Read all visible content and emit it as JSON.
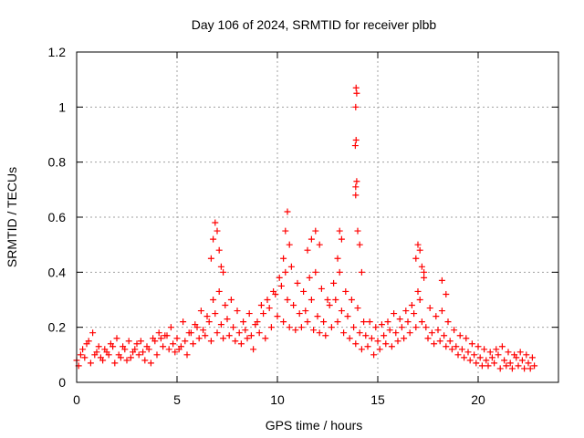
{
  "colors": {
    "series": "#ff0000",
    "grid": "#a0a0a0",
    "axis": "#000000",
    "background": "#ffffff"
  },
  "chart_data": {
    "type": "scatter",
    "title": "Day 106 of 2024, SRMTID for receiver plbb",
    "xlabel": "GPS time / hours",
    "ylabel": "SRMTID / TECUs",
    "xlim": [
      0,
      24
    ],
    "ylim": [
      0,
      1.2
    ],
    "xticks": [
      0,
      5,
      10,
      15,
      20
    ],
    "xtick_labels": [
      "0",
      "5",
      "10",
      "15",
      "20"
    ],
    "yticks": [
      0,
      0.2,
      0.4,
      0.6,
      0.8,
      1.0,
      1.2
    ],
    "ytick_labels": [
      "0",
      "0.2",
      "0.4",
      "0.6",
      "0.8",
      "1",
      "1.2"
    ],
    "grid": true,
    "marker": "+",
    "series": [
      {
        "name": "SRMTID",
        "x": [
          0.0,
          0.3,
          0.6,
          0.9,
          1.2,
          1.5,
          1.8,
          2.1,
          2.4,
          2.7,
          3.0,
          3.3,
          3.6,
          3.9,
          4.2,
          4.5,
          4.8,
          5.1,
          5.4,
          5.7,
          6.0,
          6.3,
          6.6,
          6.9,
          7.2,
          7.5,
          7.8,
          8.1,
          8.4,
          8.7,
          9.0,
          9.3,
          9.6,
          9.9,
          10.2,
          10.5,
          10.8,
          11.1,
          11.4,
          11.7,
          12.0,
          12.3,
          12.6,
          12.9,
          13.2,
          13.5,
          13.8,
          14.1,
          14.4,
          14.7,
          15.0,
          15.3,
          15.6,
          15.9,
          16.2,
          16.5,
          16.8,
          17.1,
          17.4,
          17.7,
          18.0,
          18.3,
          18.6,
          18.9,
          19.2,
          19.5,
          19.8,
          20.1,
          20.4,
          20.7,
          21.0,
          21.3,
          21.6,
          21.9,
          22.2,
          22.5,
          22.8,
          0.1,
          0.4,
          0.7,
          1.0,
          1.3,
          1.6,
          1.9,
          2.2,
          2.5,
          2.8,
          3.1,
          3.4,
          3.7,
          4.0,
          4.3,
          4.6,
          4.9,
          5.2,
          5.5,
          5.8,
          6.1,
          6.4,
          6.7,
          7.0,
          7.3,
          7.6,
          7.9,
          8.2,
          8.5,
          8.8,
          9.1,
          9.4,
          9.7,
          10.0,
          10.3,
          10.6,
          10.9,
          11.2,
          11.5,
          11.8,
          12.1,
          12.4,
          12.7,
          13.0,
          13.3,
          13.6,
          13.9,
          14.2,
          14.5,
          14.8,
          15.1,
          15.4,
          15.7,
          16.0,
          16.3,
          16.6,
          16.9,
          17.2,
          17.5,
          17.8,
          18.1,
          18.4,
          18.7,
          19.0,
          19.3,
          19.6,
          19.9,
          20.2,
          20.5,
          20.8,
          21.1,
          21.4,
          21.7,
          22.0,
          22.3,
          22.6,
          0.2,
          0.5,
          0.8,
          1.1,
          1.4,
          1.7,
          2.0,
          2.3,
          2.6,
          2.9,
          3.2,
          3.5,
          3.8,
          4.1,
          4.4,
          4.7,
          5.0,
          5.3,
          5.6,
          5.9,
          6.2,
          6.5,
          6.8,
          7.1,
          7.4,
          7.7,
          8.0,
          8.3,
          8.6,
          8.9,
          9.2,
          9.5,
          9.8,
          10.1,
          10.4,
          10.7,
          11.0,
          11.3,
          11.6,
          11.9,
          12.2,
          12.5,
          12.8,
          13.1,
          13.4,
          13.7,
          14.0,
          14.3,
          14.6,
          14.9,
          15.2,
          15.5,
          15.8,
          16.1,
          16.4,
          16.7,
          17.0,
          17.3,
          17.6,
          17.9,
          18.2,
          18.5,
          18.8,
          19.1,
          19.4,
          19.7,
          20.0,
          20.3,
          20.6,
          20.9,
          21.2,
          21.5,
          21.8,
          22.1,
          22.4,
          22.7,
          6.7,
          6.8,
          6.9,
          7.0,
          7.1,
          7.2,
          7.3,
          10.3,
          10.4,
          10.5,
          10.6,
          11.5,
          11.7,
          11.9,
          12.1,
          13.0,
          13.1,
          13.2,
          13.9,
          13.92,
          13.95,
          13.9,
          13.92,
          13.88,
          13.95,
          13.9,
          14.0,
          14.1,
          14.2,
          16.9,
          17.0,
          17.1,
          17.2,
          17.3,
          18.2,
          18.4
        ],
        "y": [
          0.08,
          0.12,
          0.15,
          0.1,
          0.09,
          0.11,
          0.13,
          0.1,
          0.12,
          0.09,
          0.14,
          0.11,
          0.12,
          0.15,
          0.16,
          0.17,
          0.14,
          0.12,
          0.15,
          0.18,
          0.2,
          0.19,
          0.22,
          0.25,
          0.21,
          0.23,
          0.2,
          0.18,
          0.19,
          0.17,
          0.22,
          0.25,
          0.27,
          0.32,
          0.35,
          0.3,
          0.28,
          0.25,
          0.26,
          0.3,
          0.24,
          0.22,
          0.28,
          0.3,
          0.26,
          0.24,
          0.2,
          0.18,
          0.17,
          0.16,
          0.15,
          0.17,
          0.19,
          0.18,
          0.2,
          0.22,
          0.25,
          0.3,
          0.2,
          0.18,
          0.19,
          0.17,
          0.15,
          0.13,
          0.12,
          0.11,
          0.1,
          0.09,
          0.08,
          0.09,
          0.1,
          0.08,
          0.07,
          0.09,
          0.08,
          0.07,
          0.06,
          0.06,
          0.09,
          0.07,
          0.11,
          0.08,
          0.1,
          0.07,
          0.09,
          0.08,
          0.11,
          0.1,
          0.08,
          0.07,
          0.1,
          0.13,
          0.12,
          0.11,
          0.13,
          0.1,
          0.14,
          0.16,
          0.17,
          0.15,
          0.18,
          0.16,
          0.17,
          0.15,
          0.14,
          0.16,
          0.12,
          0.18,
          0.16,
          0.2,
          0.24,
          0.22,
          0.2,
          0.19,
          0.2,
          0.22,
          0.19,
          0.18,
          0.17,
          0.2,
          0.22,
          0.18,
          0.16,
          0.14,
          0.12,
          0.13,
          0.1,
          0.12,
          0.14,
          0.13,
          0.15,
          0.16,
          0.18,
          0.2,
          0.22,
          0.16,
          0.14,
          0.15,
          0.13,
          0.12,
          0.1,
          0.09,
          0.08,
          0.07,
          0.06,
          0.06,
          0.07,
          0.05,
          0.06,
          0.05,
          0.06,
          0.05,
          0.05,
          0.1,
          0.14,
          0.18,
          0.13,
          0.12,
          0.14,
          0.16,
          0.13,
          0.15,
          0.12,
          0.15,
          0.13,
          0.16,
          0.18,
          0.17,
          0.2,
          0.16,
          0.22,
          0.18,
          0.21,
          0.26,
          0.24,
          0.3,
          0.33,
          0.28,
          0.3,
          0.26,
          0.22,
          0.25,
          0.21,
          0.28,
          0.3,
          0.33,
          0.38,
          0.4,
          0.42,
          0.36,
          0.33,
          0.38,
          0.4,
          0.34,
          0.3,
          0.36,
          0.4,
          0.33,
          0.3,
          0.27,
          0.22,
          0.22,
          0.2,
          0.21,
          0.22,
          0.25,
          0.23,
          0.26,
          0.28,
          0.33,
          0.38,
          0.27,
          0.24,
          0.26,
          0.22,
          0.19,
          0.17,
          0.16,
          0.14,
          0.13,
          0.12,
          0.11,
          0.12,
          0.13,
          0.11,
          0.1,
          0.11,
          0.1,
          0.09,
          0.45,
          0.52,
          0.58,
          0.55,
          0.48,
          0.42,
          0.4,
          0.45,
          0.55,
          0.62,
          0.5,
          0.48,
          0.52,
          0.55,
          0.5,
          0.45,
          0.55,
          0.52,
          0.68,
          1.07,
          1.05,
          1.0,
          0.88,
          0.86,
          0.73,
          0.71,
          0.55,
          0.5,
          0.4,
          0.45,
          0.5,
          0.48,
          0.42,
          0.4,
          0.37,
          0.32
        ]
      }
    ]
  }
}
